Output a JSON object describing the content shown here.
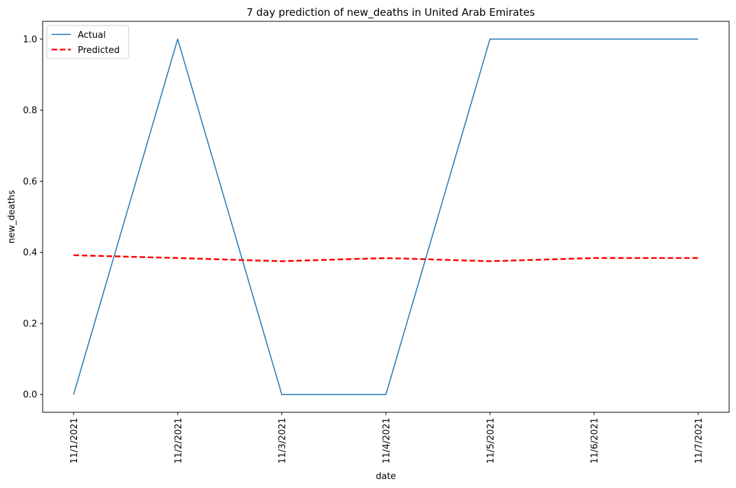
{
  "chart_data": {
    "type": "line",
    "title": "7 day prediction of new_deaths in United Arab Emirates",
    "xlabel": "date",
    "ylabel": "new_deaths",
    "x": [
      "11/1/2021",
      "11/2/2021",
      "11/3/2021",
      "11/4/2021",
      "11/5/2021",
      "11/6/2021",
      "11/7/2021"
    ],
    "ylim": [
      -0.05,
      1.05
    ],
    "yticks": [
      0.0,
      0.2,
      0.4,
      0.6,
      0.8,
      1.0
    ],
    "ytick_labels": [
      "0.0",
      "0.2",
      "0.4",
      "0.6",
      "0.8",
      "1.0"
    ],
    "grid": false,
    "legend_position": "top-left",
    "series": [
      {
        "name": "Actual",
        "color": "#1f77b4",
        "style": "solid",
        "values": [
          0,
          1,
          0,
          0,
          1,
          1,
          1
        ]
      },
      {
        "name": "Predicted",
        "color": "#ff0000",
        "style": "dashed",
        "values": [
          0.392,
          0.384,
          0.375,
          0.384,
          0.375,
          0.384,
          0.384
        ]
      }
    ]
  }
}
